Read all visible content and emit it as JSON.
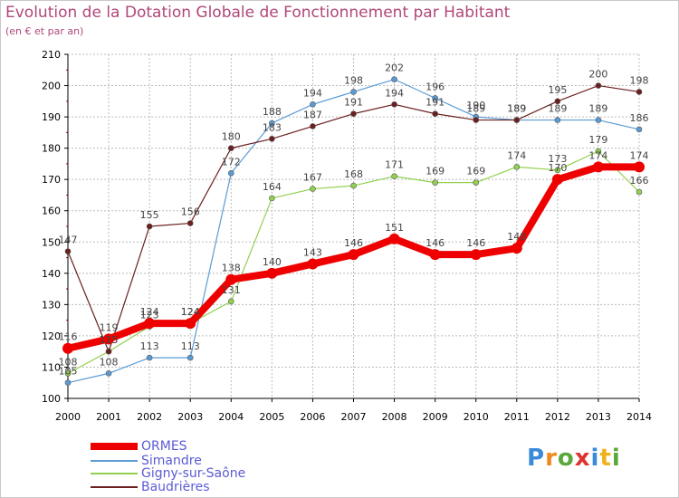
{
  "title": "Evolution de la Dotation Globale de Fonctionnement par Habitant",
  "subtitle": "(en € et par an)",
  "logo": {
    "text": "Proxiti"
  },
  "colors": {
    "ORMES": "#ee0000",
    "Simandre": "#5b9bd5",
    "Gigny-sur-Saône": "#92d050",
    "Baudrières": "#6b1f1f",
    "title": "#b0477a",
    "legend_text": "#5b5bd6",
    "grid": "#bbbbbb"
  },
  "chart_data": {
    "type": "line",
    "x": [
      "2000",
      "2001",
      "2002",
      "2003",
      "2004",
      "2005",
      "2006",
      "2007",
      "2008",
      "2009",
      "2010",
      "2011",
      "2012",
      "2013",
      "2014"
    ],
    "ylim": [
      100,
      210
    ],
    "yticks": [
      100,
      110,
      120,
      130,
      140,
      150,
      160,
      170,
      180,
      190,
      200,
      210
    ],
    "grid": true,
    "legend_position": "bottom-left",
    "series": [
      {
        "name": "ORMES",
        "values": [
          116,
          119,
          124,
          124,
          138,
          140,
          143,
          146,
          151,
          146,
          146,
          148,
          170,
          174,
          174
        ]
      },
      {
        "name": "Simandre",
        "values": [
          105,
          108,
          113,
          113,
          172,
          188,
          194,
          198,
          202,
          196,
          190,
          189,
          189,
          189,
          186
        ]
      },
      {
        "name": "Gigny-sur-Saône",
        "values": [
          108,
          115,
          123,
          124,
          131,
          164,
          167,
          168,
          171,
          169,
          169,
          174,
          173,
          179,
          166
        ]
      },
      {
        "name": "Baudrières",
        "values": [
          147,
          115,
          155,
          156,
          180,
          183,
          187,
          191,
          194,
          191,
          189,
          189,
          195,
          200,
          198
        ]
      }
    ]
  },
  "legend": [
    {
      "label": "ORMES"
    },
    {
      "label": "Simandre"
    },
    {
      "label": "Gigny-sur-Saône"
    },
    {
      "label": "Baudrières"
    }
  ]
}
